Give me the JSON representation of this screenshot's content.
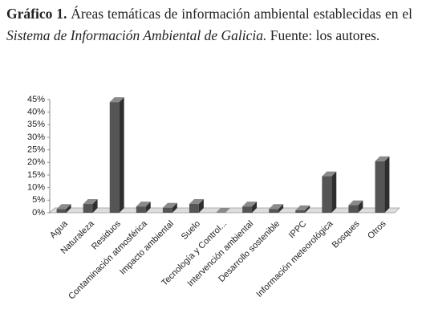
{
  "chart_data": {
    "type": "bar3d",
    "title_label": "Gráfico 1.",
    "title": "Áreas temáticas de información ambiental establecidas en el",
    "title_italic": "Sistema de Información Ambiental de Galicia.",
    "title_end": "Fuente: los autores.",
    "categories": [
      "Agua",
      "Naturaleza",
      "Residuos",
      "Contaminación atmosférica",
      "Impacto ambiental",
      "Suelo",
      "Tecnología y Control...",
      "Intervención ambiental",
      "Desarrollo sostenible",
      "IPPC",
      "Información meteorológica",
      "Bosques",
      "Otros"
    ],
    "values": [
      1.5,
      3.5,
      44,
      2.5,
      2,
      3.5,
      0,
      2.5,
      1.5,
      1,
      14.5,
      3,
      20.5
    ],
    "color": "#555555",
    "ylim": [
      0,
      45
    ],
    "yticks": [
      {
        "value": 0,
        "label": "0%"
      },
      {
        "value": 5,
        "label": "5%"
      },
      {
        "value": 10,
        "label": "10%"
      },
      {
        "value": 15,
        "label": "15%"
      },
      {
        "value": 20,
        "label": "20%"
      },
      {
        "value": 25,
        "label": "25%"
      },
      {
        "value": 30,
        "label": "30%"
      },
      {
        "value": 35,
        "label": "35%"
      },
      {
        "value": 40,
        "label": "40%"
      },
      {
        "value": 45,
        "label": "45%"
      }
    ]
  }
}
